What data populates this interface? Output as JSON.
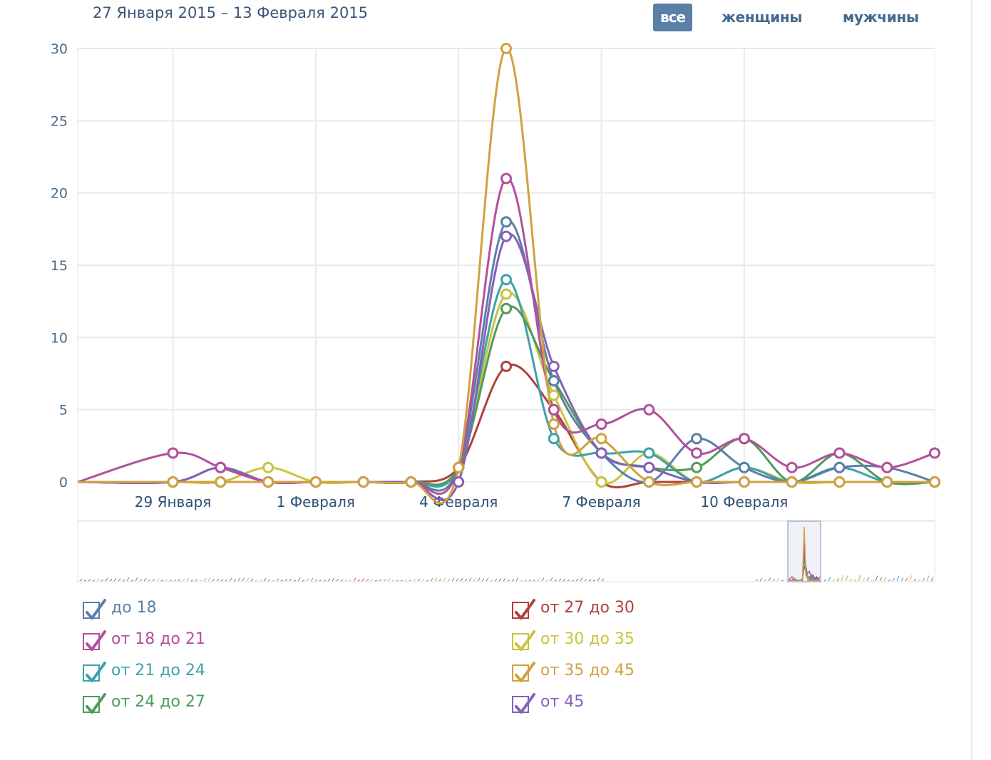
{
  "header": {
    "date_range": "27 Января 2015 – 13 Февраля 2015",
    "filters": [
      {
        "label": "все",
        "active": true
      },
      {
        "label": "женщины",
        "active": false
      },
      {
        "label": "мужчины",
        "active": false
      }
    ]
  },
  "chart_data": {
    "type": "line",
    "x": [
      "2015-01-27",
      "2015-01-28",
      "2015-01-29",
      "2015-01-30",
      "2015-01-31",
      "2015-02-01",
      "2015-02-02",
      "2015-02-03",
      "2015-02-04",
      "2015-02-05",
      "2015-02-06",
      "2015-02-07",
      "2015-02-08",
      "2015-02-09",
      "2015-02-10",
      "2015-02-11",
      "2015-02-12",
      "2015-02-13"
    ],
    "x_tick_labels": [
      {
        "x": "2015-01-29",
        "label": "29 Января"
      },
      {
        "x": "2015-02-01",
        "label": "1 Февраля"
      },
      {
        "x": "2015-02-04",
        "label": "4 Февраля"
      },
      {
        "x": "2015-02-07",
        "label": "7 Февраля"
      },
      {
        "x": "2015-02-10",
        "label": "10 Февраля"
      }
    ],
    "y_ticks": [
      0,
      5,
      10,
      15,
      20,
      25,
      30
    ],
    "ylim": [
      0,
      30
    ],
    "grid": true,
    "legend_position": "bottom",
    "series": [
      {
        "name": "до 18",
        "color": "#5b7fa6",
        "points": [
          [
            "2015-01-27",
            0
          ],
          [
            "2015-01-29",
            0
          ],
          [
            "2015-01-30",
            1
          ],
          [
            "2015-01-31",
            0
          ],
          [
            "2015-02-01",
            0
          ],
          [
            "2015-02-02",
            0
          ],
          [
            "2015-02-03",
            0
          ],
          [
            "2015-02-04",
            1
          ],
          [
            "2015-02-05",
            18
          ],
          [
            "2015-02-06",
            7
          ],
          [
            "2015-02-07",
            2
          ],
          [
            "2015-02-08",
            0
          ],
          [
            "2015-02-09",
            3
          ],
          [
            "2015-02-10",
            1
          ],
          [
            "2015-02-11",
            0
          ],
          [
            "2015-02-12",
            1
          ],
          [
            "2015-02-13",
            1
          ],
          [
            "2015-02-14",
            0
          ]
        ]
      },
      {
        "name": "от 18 до 21",
        "color": "#b3509c",
        "points": [
          [
            "2015-01-27",
            0
          ],
          [
            "2015-01-29",
            2
          ],
          [
            "2015-01-30",
            1
          ],
          [
            "2015-01-31",
            0
          ],
          [
            "2015-02-01",
            0
          ],
          [
            "2015-02-02",
            0
          ],
          [
            "2015-02-03",
            0
          ],
          [
            "2015-02-04",
            1
          ],
          [
            "2015-02-05",
            21
          ],
          [
            "2015-02-06",
            5
          ],
          [
            "2015-02-07",
            4
          ],
          [
            "2015-02-08",
            5
          ],
          [
            "2015-02-09",
            2
          ],
          [
            "2015-02-10",
            3
          ],
          [
            "2015-02-11",
            1
          ],
          [
            "2015-02-12",
            2
          ],
          [
            "2015-02-13",
            1
          ],
          [
            "2015-02-14",
            2
          ]
        ]
      },
      {
        "name": "от 21 до 24",
        "color": "#3ca2ad",
        "points": [
          [
            "2015-01-27",
            0
          ],
          [
            "2015-01-29",
            0
          ],
          [
            "2015-01-30",
            0
          ],
          [
            "2015-01-31",
            0
          ],
          [
            "2015-02-01",
            0
          ],
          [
            "2015-02-02",
            0
          ],
          [
            "2015-02-03",
            0
          ],
          [
            "2015-02-04",
            1
          ],
          [
            "2015-02-05",
            14
          ],
          [
            "2015-02-06",
            3
          ],
          [
            "2015-02-07",
            2
          ],
          [
            "2015-02-08",
            2
          ],
          [
            "2015-02-09",
            0
          ],
          [
            "2015-02-10",
            1
          ],
          [
            "2015-02-11",
            0
          ],
          [
            "2015-02-12",
            1
          ],
          [
            "2015-02-13",
            0
          ],
          [
            "2015-02-14",
            0
          ]
        ]
      },
      {
        "name": "от 24 до 27",
        "color": "#4f9b5b",
        "points": [
          [
            "2015-01-27",
            0
          ],
          [
            "2015-01-29",
            0
          ],
          [
            "2015-01-30",
            0
          ],
          [
            "2015-01-31",
            0
          ],
          [
            "2015-02-01",
            0
          ],
          [
            "2015-02-02",
            0
          ],
          [
            "2015-02-03",
            0
          ],
          [
            "2015-02-04",
            1
          ],
          [
            "2015-02-05",
            12
          ],
          [
            "2015-02-06",
            7
          ],
          [
            "2015-02-07",
            2
          ],
          [
            "2015-02-08",
            1
          ],
          [
            "2015-02-09",
            1
          ],
          [
            "2015-02-10",
            3
          ],
          [
            "2015-02-11",
            0
          ],
          [
            "2015-02-12",
            2
          ],
          [
            "2015-02-13",
            0
          ],
          [
            "2015-02-14",
            0
          ]
        ]
      },
      {
        "name": "от 27 до 30",
        "color": "#b0403e",
        "points": [
          [
            "2015-01-27",
            0
          ],
          [
            "2015-01-29",
            0
          ],
          [
            "2015-01-30",
            0
          ],
          [
            "2015-01-31",
            0
          ],
          [
            "2015-02-01",
            0
          ],
          [
            "2015-02-02",
            0
          ],
          [
            "2015-02-03",
            0
          ],
          [
            "2015-02-04",
            1
          ],
          [
            "2015-02-05",
            8
          ],
          [
            "2015-02-06",
            5
          ],
          [
            "2015-02-07",
            0
          ],
          [
            "2015-02-08",
            0
          ],
          [
            "2015-02-09",
            0
          ],
          [
            "2015-02-10",
            0
          ],
          [
            "2015-02-11",
            0
          ],
          [
            "2015-02-12",
            0
          ],
          [
            "2015-02-13",
            0
          ],
          [
            "2015-02-14",
            0
          ]
        ]
      },
      {
        "name": "от 30 до 35",
        "color": "#c9c43e",
        "points": [
          [
            "2015-01-27",
            0
          ],
          [
            "2015-01-29",
            0
          ],
          [
            "2015-01-30",
            0
          ],
          [
            "2015-01-31",
            1
          ],
          [
            "2015-02-01",
            0
          ],
          [
            "2015-02-02",
            0
          ],
          [
            "2015-02-03",
            0
          ],
          [
            "2015-02-04",
            1
          ],
          [
            "2015-02-05",
            13
          ],
          [
            "2015-02-06",
            6
          ],
          [
            "2015-02-07",
            0
          ],
          [
            "2015-02-08",
            2
          ],
          [
            "2015-02-09",
            0
          ],
          [
            "2015-02-10",
            1
          ],
          [
            "2015-02-11",
            0
          ],
          [
            "2015-02-12",
            0
          ],
          [
            "2015-02-13",
            0
          ],
          [
            "2015-02-14",
            0
          ]
        ]
      },
      {
        "name": "от 35 до 45",
        "color": "#d2a13f",
        "points": [
          [
            "2015-01-27",
            0
          ],
          [
            "2015-01-29",
            0
          ],
          [
            "2015-01-30",
            0
          ],
          [
            "2015-01-31",
            0
          ],
          [
            "2015-02-01",
            0
          ],
          [
            "2015-02-02",
            0
          ],
          [
            "2015-02-03",
            0
          ],
          [
            "2015-02-04",
            1
          ],
          [
            "2015-02-05",
            30
          ],
          [
            "2015-02-06",
            4
          ],
          [
            "2015-02-07",
            3
          ],
          [
            "2015-02-08",
            0
          ],
          [
            "2015-02-09",
            0
          ],
          [
            "2015-02-10",
            0
          ],
          [
            "2015-02-11",
            0
          ],
          [
            "2015-02-12",
            0
          ],
          [
            "2015-02-13",
            0
          ],
          [
            "2015-02-14",
            0
          ]
        ]
      },
      {
        "name": "от 45",
        "color": "#8561b8",
        "points": [
          [
            "2015-01-27",
            0
          ],
          [
            "2015-01-29",
            0
          ],
          [
            "2015-01-30",
            1
          ],
          [
            "2015-01-31",
            0
          ],
          [
            "2015-02-01",
            0
          ],
          [
            "2015-02-02",
            0
          ],
          [
            "2015-02-03",
            0
          ],
          [
            "2015-02-04",
            0
          ],
          [
            "2015-02-05",
            17
          ],
          [
            "2015-02-06",
            8
          ],
          [
            "2015-02-07",
            2
          ],
          [
            "2015-02-08",
            1
          ],
          [
            "2015-02-09",
            0
          ],
          [
            "2015-02-10",
            0
          ],
          [
            "2015-02-11",
            0
          ],
          [
            "2015-02-12",
            0
          ],
          [
            "2015-02-13",
            0
          ],
          [
            "2015-02-14",
            0
          ]
        ]
      }
    ]
  }
}
